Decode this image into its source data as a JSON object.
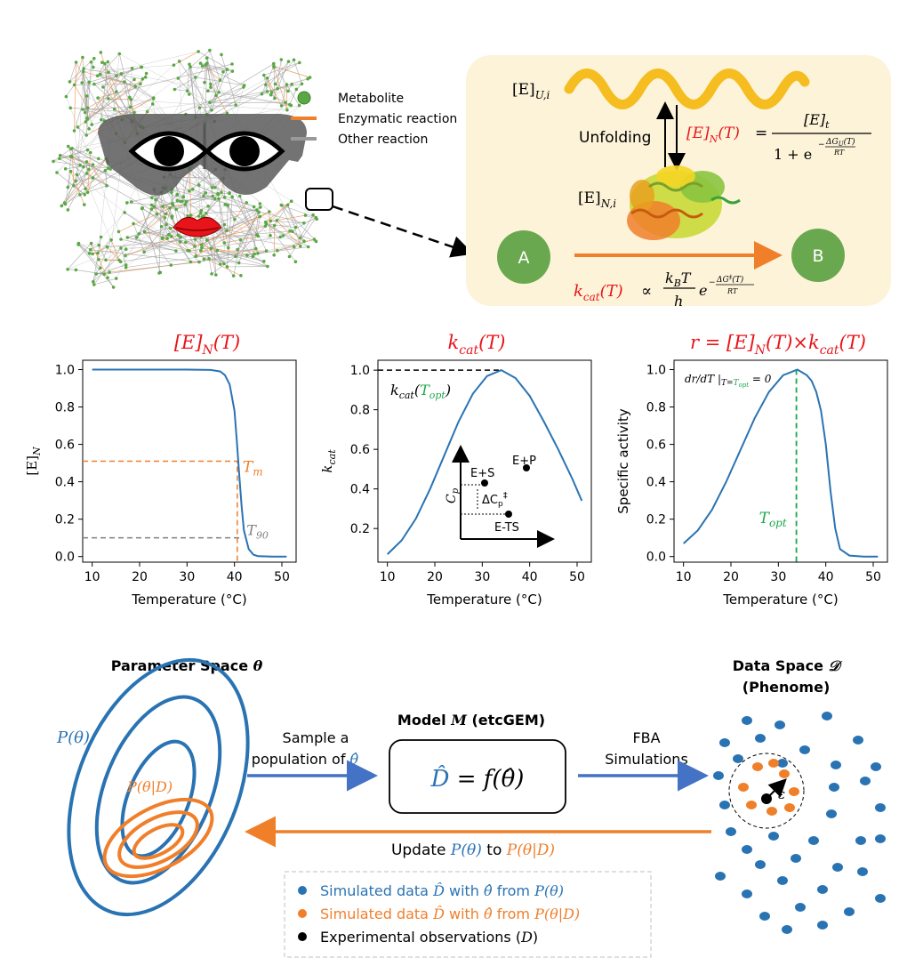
{
  "colors": {
    "metabolite": "#5aa845",
    "enzymatic": "#f07f2a",
    "other": "#999999",
    "curve": "#2a73b3",
    "tm": "#f07f2a",
    "t90": "#808080",
    "topt": "#1aa84b",
    "accent_red": "#e8141b",
    "blue": "#2a73b3",
    "orange": "#f07f2a",
    "panel_bg": "#fdf3d9"
  },
  "network": {
    "legend": [
      "Metabolite",
      "Enzymatic reaction",
      "Other reaction"
    ]
  },
  "mechanism": {
    "unfolding_label": "Unfolding",
    "eu": "[E]",
    "eu_sub": "U,i",
    "en": "[E]",
    "en_sub": "N,i",
    "node_a": "A",
    "node_b": "B"
  },
  "chart_data": [
    {
      "type": "line",
      "title": "[E]N(T)",
      "xlabel": "Temperature (°C)",
      "ylabel": "[E]N",
      "xlim": [
        8,
        53
      ],
      "ylim": [
        -0.03,
        1.05
      ],
      "xticks": [
        "10",
        "20",
        "30",
        "40",
        "50"
      ],
      "yticks": [
        "0.0",
        "0.2",
        "0.4",
        "0.6",
        "0.8",
        "1.0"
      ],
      "x": [
        10,
        20,
        30,
        35,
        37,
        38,
        39,
        40,
        40.5,
        41,
        41.5,
        42,
        43,
        44,
        45,
        48,
        51
      ],
      "y": [
        1.0,
        1.0,
        1.0,
        0.998,
        0.99,
        0.97,
        0.92,
        0.78,
        0.62,
        0.44,
        0.27,
        0.14,
        0.04,
        0.01,
        0.002,
        0.0,
        0.0
      ],
      "annotations": [
        {
          "label": "Tm",
          "x": 40.6,
          "y": 0.51,
          "color": "#f07f2a"
        },
        {
          "label": "T90",
          "x": 41.8,
          "y": 0.1,
          "color": "#808080"
        }
      ]
    },
    {
      "type": "line",
      "title": "kcat(T)",
      "xlabel": "Temperature (°C)",
      "ylabel": "kcat",
      "xlim": [
        8,
        53
      ],
      "ylim": [
        0.03,
        1.05
      ],
      "xticks": [
        "10",
        "20",
        "30",
        "40",
        "50"
      ],
      "yticks": [
        "0.2",
        "0.4",
        "0.6",
        "0.8",
        "1.0"
      ],
      "x": [
        10,
        13,
        16,
        19,
        22,
        25,
        28,
        31,
        34,
        37,
        40,
        43,
        46,
        49,
        51
      ],
      "y": [
        0.07,
        0.14,
        0.25,
        0.4,
        0.57,
        0.74,
        0.88,
        0.97,
        1.0,
        0.96,
        0.87,
        0.74,
        0.6,
        0.45,
        0.34
      ],
      "annotations": [
        {
          "label": "kcat(Topt)",
          "x": 34,
          "y": 1.0
        }
      ],
      "inset": {
        "ylabel": "Cp",
        "points": [
          "E+S",
          "E+P",
          "E-TS"
        ],
        "delta_label": "ΔCp‡"
      }
    },
    {
      "type": "line",
      "title": "r = [E]N(T)×kcat(T)",
      "xlabel": "Temperature (°C)",
      "ylabel": "Specific activity",
      "xlim": [
        8,
        53
      ],
      "ylim": [
        -0.03,
        1.05
      ],
      "xticks": [
        "10",
        "20",
        "30",
        "40",
        "50"
      ],
      "yticks": [
        "0.0",
        "0.2",
        "0.4",
        "0.6",
        "0.8",
        "1.0"
      ],
      "x": [
        10,
        13,
        16,
        19,
        22,
        25,
        28,
        31,
        34,
        36,
        37,
        38,
        39,
        40,
        41,
        42,
        43,
        45,
        48,
        51
      ],
      "y": [
        0.07,
        0.14,
        0.25,
        0.4,
        0.57,
        0.74,
        0.88,
        0.97,
        1.0,
        0.97,
        0.94,
        0.88,
        0.78,
        0.6,
        0.35,
        0.15,
        0.04,
        0.005,
        0.0,
        0.0
      ],
      "annotations": [
        {
          "label": "Topt",
          "x": 33.8,
          "color": "#1aa84b"
        },
        {
          "label": "dr/dT|T=Topt = 0"
        }
      ]
    }
  ],
  "bayes": {
    "param_title": "Parameter Space θ",
    "p_theta": "P(θ)",
    "p_theta_d": "P(θ|D)",
    "model_title": "Model M (etcGEM)",
    "model_formula_lhs": "D̂",
    "model_formula_rhs": "= f(θ̂)",
    "sample_line1": "Sample a",
    "sample_line2": "population of",
    "sample_theta": "θ̂",
    "fba_line1": "FBA",
    "fba_line2": "Simulations",
    "data_title": "Data Space 𝒟",
    "data_subtitle": "(Phenome)",
    "epsilon": "ε",
    "update_prefix": "Update",
    "update_from": "P(θ)",
    "update_to_word": "to",
    "update_to": "P(θ|D)",
    "legend": [
      {
        "prefix": "Simulated data ",
        "dhat": "D̂",
        "mid": " with ",
        "thetahat": "θ̂",
        "from": " from ",
        "dist": "P(θ)",
        "color": "#2a73b3"
      },
      {
        "prefix": "Simulated data ",
        "dhat": "D̂",
        "mid": " with ",
        "thetahat": "θ̂",
        "from": " from ",
        "dist": "P(θ|D)",
        "color": "#f07f2a"
      },
      {
        "prefix": "Experimental observations (",
        "dist": "D",
        "suffix": ")",
        "color": "#000000"
      }
    ]
  }
}
